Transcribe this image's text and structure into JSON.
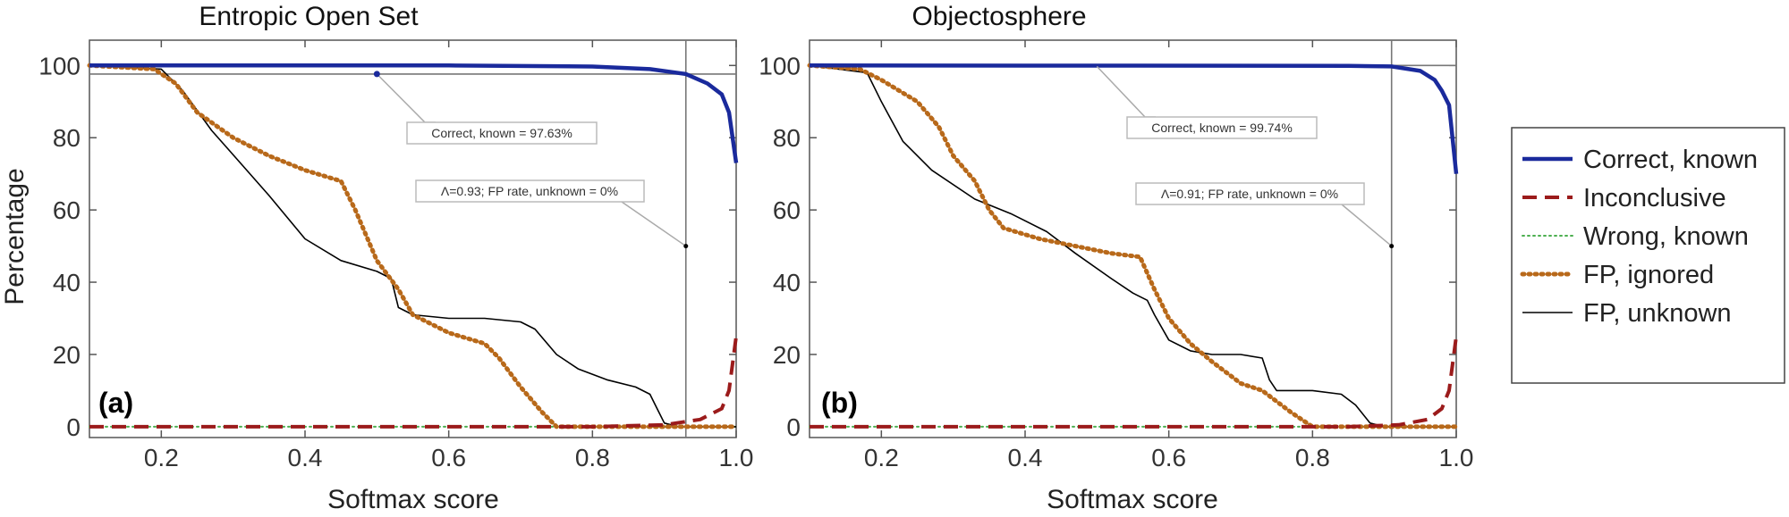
{
  "chart_data": {
    "type": "line",
    "xlabel": "Softmax score",
    "ylabel": "Percentage",
    "xlim": [
      0.1,
      1.0
    ],
    "ylim": [
      -3,
      107
    ],
    "xticks": [
      0.2,
      0.4,
      0.6,
      0.8,
      1.0
    ],
    "xtick_labels": [
      "0.2",
      "0.4",
      "0.6",
      "0.8",
      "1.0"
    ],
    "yticks": [
      0,
      20,
      40,
      60,
      80,
      100
    ],
    "ytick_labels": [
      "0",
      "20",
      "40",
      "60",
      "80",
      "100"
    ],
    "legend": [
      {
        "key": "correct_known",
        "label": "Correct, known",
        "color": "#1a2a9c",
        "style": "solid-thick"
      },
      {
        "key": "inconclusive",
        "label": "Inconclusive",
        "color": "#9b1b1b",
        "style": "dashed"
      },
      {
        "key": "wrong_known",
        "label": "Wrong, known",
        "color": "#4caf50",
        "style": "dotted"
      },
      {
        "key": "fp_ignored",
        "label": "FP, ignored",
        "color": "#b8691a",
        "style": "dotted-thick"
      },
      {
        "key": "fp_unknown",
        "label": "FP, unknown",
        "color": "#000000",
        "style": "solid-thin"
      }
    ],
    "panels": [
      {
        "title": "Entropic Open Set",
        "panel_label": "(a)",
        "threshold": 0.93,
        "annotation_correct": "Correct, known = 97.63%",
        "annotation_threshold": "Λ=0.93; FP rate, unknown = 0%",
        "correct_known_at_threshold": 97.63,
        "series": {
          "correct_known": [
            [
              0.1,
              100
            ],
            [
              0.6,
              100
            ],
            [
              0.8,
              99.7
            ],
            [
              0.88,
              99
            ],
            [
              0.93,
              97.63
            ],
            [
              0.96,
              95
            ],
            [
              0.98,
              92
            ],
            [
              0.99,
              87
            ],
            [
              1.0,
              73
            ]
          ],
          "inconclusive": [
            [
              0.1,
              0
            ],
            [
              0.8,
              0
            ],
            [
              0.9,
              0.5
            ],
            [
              0.95,
              2
            ],
            [
              0.98,
              5
            ],
            [
              0.99,
              10
            ],
            [
              1.0,
              25
            ]
          ],
          "wrong_known": [
            [
              0.1,
              0
            ],
            [
              1.0,
              0
            ]
          ],
          "fp_ignored": [
            [
              0.1,
              100
            ],
            [
              0.19,
              99
            ],
            [
              0.22,
              95
            ],
            [
              0.25,
              87
            ],
            [
              0.3,
              80
            ],
            [
              0.35,
              75
            ],
            [
              0.4,
              71
            ],
            [
              0.45,
              68
            ],
            [
              0.47,
              60
            ],
            [
              0.5,
              46
            ],
            [
              0.53,
              38
            ],
            [
              0.55,
              31
            ],
            [
              0.6,
              26
            ],
            [
              0.65,
              23
            ],
            [
              0.67,
              19
            ],
            [
              0.7,
              11
            ],
            [
              0.73,
              4
            ],
            [
              0.75,
              0
            ],
            [
              0.8,
              0
            ],
            [
              1.0,
              0
            ]
          ],
          "fp_unknown": [
            [
              0.1,
              100
            ],
            [
              0.2,
              99
            ],
            [
              0.23,
              93
            ],
            [
              0.27,
              82
            ],
            [
              0.31,
              73
            ],
            [
              0.35,
              64
            ],
            [
              0.4,
              52
            ],
            [
              0.45,
              46
            ],
            [
              0.5,
              43
            ],
            [
              0.52,
              41
            ],
            [
              0.53,
              33
            ],
            [
              0.55,
              31
            ],
            [
              0.6,
              30
            ],
            [
              0.65,
              30
            ],
            [
              0.7,
              29
            ],
            [
              0.72,
              27
            ],
            [
              0.75,
              20
            ],
            [
              0.78,
              16
            ],
            [
              0.82,
              13
            ],
            [
              0.86,
              11
            ],
            [
              0.88,
              9
            ],
            [
              0.89,
              5
            ],
            [
              0.9,
              1
            ],
            [
              0.92,
              0
            ],
            [
              1.0,
              0
            ]
          ],
          "fp_unknown_guide": [
            [
              0.1,
              97.63
            ],
            [
              1.0,
              97.63
            ]
          ]
        }
      },
      {
        "title": "Objectosphere",
        "panel_label": "(b)",
        "threshold": 0.91,
        "annotation_correct": "Correct, known = 99.74%",
        "annotation_threshold": "Λ=0.91; FP rate, unknown = 0%",
        "correct_known_at_threshold": 99.74,
        "series": {
          "correct_known": [
            [
              0.1,
              100
            ],
            [
              0.85,
              99.9
            ],
            [
              0.91,
              99.74
            ],
            [
              0.95,
              98.5
            ],
            [
              0.97,
              96
            ],
            [
              0.98,
              93
            ],
            [
              0.99,
              89
            ],
            [
              1.0,
              70
            ]
          ],
          "inconclusive": [
            [
              0.1,
              0
            ],
            [
              0.85,
              0
            ],
            [
              0.92,
              0.5
            ],
            [
              0.96,
              2
            ],
            [
              0.98,
              5
            ],
            [
              0.99,
              10
            ],
            [
              1.0,
              25
            ]
          ],
          "wrong_known": [
            [
              0.1,
              0
            ],
            [
              1.0,
              0
            ]
          ],
          "fp_ignored": [
            [
              0.1,
              100
            ],
            [
              0.17,
              99
            ],
            [
              0.2,
              96
            ],
            [
              0.25,
              90
            ],
            [
              0.28,
              83
            ],
            [
              0.3,
              75
            ],
            [
              0.33,
              68
            ],
            [
              0.35,
              60
            ],
            [
              0.37,
              55
            ],
            [
              0.42,
              52
            ],
            [
              0.47,
              50
            ],
            [
              0.52,
              48
            ],
            [
              0.56,
              47
            ],
            [
              0.58,
              38
            ],
            [
              0.6,
              30
            ],
            [
              0.63,
              23
            ],
            [
              0.66,
              18
            ],
            [
              0.7,
              12
            ],
            [
              0.73,
              10
            ],
            [
              0.77,
              4
            ],
            [
              0.8,
              0
            ],
            [
              1.0,
              0
            ]
          ],
          "fp_unknown": [
            [
              0.1,
              100
            ],
            [
              0.18,
              98
            ],
            [
              0.2,
              90
            ],
            [
              0.23,
              79
            ],
            [
              0.27,
              71
            ],
            [
              0.33,
              63
            ],
            [
              0.38,
              59
            ],
            [
              0.43,
              54
            ],
            [
              0.47,
              48
            ],
            [
              0.52,
              41
            ],
            [
              0.55,
              37
            ],
            [
              0.57,
              35
            ],
            [
              0.58,
              31
            ],
            [
              0.6,
              24
            ],
            [
              0.63,
              21
            ],
            [
              0.66,
              20
            ],
            [
              0.7,
              20
            ],
            [
              0.73,
              19
            ],
            [
              0.74,
              13
            ],
            [
              0.75,
              10
            ],
            [
              0.8,
              10
            ],
            [
              0.84,
              9
            ],
            [
              0.86,
              6
            ],
            [
              0.88,
              1
            ],
            [
              0.9,
              0
            ],
            [
              1.0,
              0
            ]
          ],
          "fp_unknown_guide": [
            [
              0.1,
              100
            ],
            [
              1.0,
              100
            ]
          ]
        }
      }
    ]
  }
}
